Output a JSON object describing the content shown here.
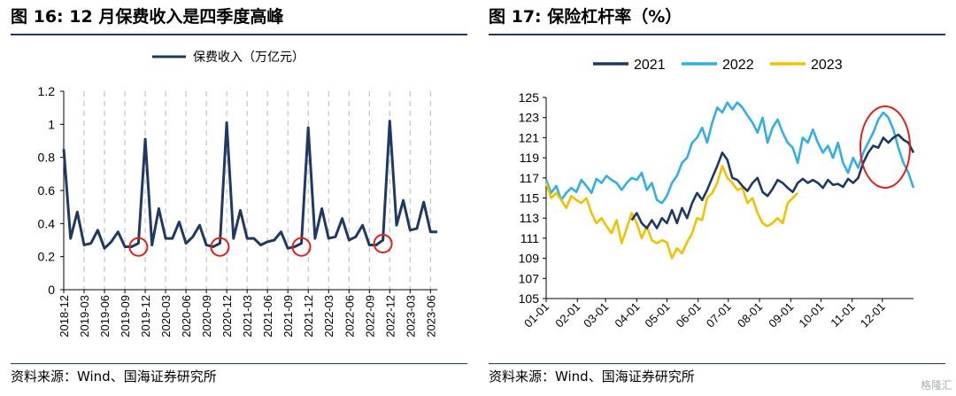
{
  "figures": [
    {
      "title": "图 16:  12 月保费收入是四季度高峰",
      "source": "资料来源：Wind、国海证券研究所"
    },
    {
      "title": "图 17:  保险杠杆率（%）",
      "source": "资料来源：Wind、国海证券研究所"
    }
  ],
  "watermark": "格隆汇",
  "chart_data": [
    {
      "type": "line",
      "title": "",
      "legend": [
        "保费收入（万亿元）"
      ],
      "legend_position": "top",
      "ylim": [
        0,
        1.2
      ],
      "yticks": [
        "0",
        "0.2",
        "0.4",
        "0.6",
        "0.8",
        "1",
        "1.2"
      ],
      "xtick_labels": [
        "2018-12",
        "2019-03",
        "2019-06",
        "2019-09",
        "2019-12",
        "2020-03",
        "2020-06",
        "2020-09",
        "2020-12",
        "2021-03",
        "2021-06",
        "2021-09",
        "2021-12",
        "2022-03",
        "2022-06",
        "2022-09",
        "2022-12",
        "2023-03",
        "2023-06"
      ],
      "x": [
        "2018-12",
        "2019-01",
        "2019-02",
        "2019-03",
        "2019-04",
        "2019-05",
        "2019-06",
        "2019-07",
        "2019-08",
        "2019-09",
        "2019-10",
        "2019-11",
        "2019-12",
        "2020-01",
        "2020-02",
        "2020-03",
        "2020-04",
        "2020-05",
        "2020-06",
        "2020-07",
        "2020-08",
        "2020-09",
        "2020-10",
        "2020-11",
        "2020-12",
        "2021-01",
        "2021-02",
        "2021-03",
        "2021-04",
        "2021-05",
        "2021-06",
        "2021-07",
        "2021-08",
        "2021-09",
        "2021-10",
        "2021-11",
        "2021-12",
        "2022-01",
        "2022-02",
        "2022-03",
        "2022-04",
        "2022-05",
        "2022-06",
        "2022-07",
        "2022-08",
        "2022-09",
        "2022-10",
        "2022-11",
        "2022-12",
        "2023-01",
        "2023-02",
        "2023-03",
        "2023-04",
        "2023-05",
        "2023-06",
        "2023-07"
      ],
      "series": [
        {
          "name": "保费收入（万亿元）",
          "color": "#1f3864",
          "values": [
            0.85,
            0.31,
            0.47,
            0.27,
            0.28,
            0.36,
            0.25,
            0.29,
            0.35,
            0.26,
            0.26,
            0.28,
            0.91,
            0.27,
            0.49,
            0.31,
            0.31,
            0.41,
            0.28,
            0.32,
            0.39,
            0.27,
            0.26,
            0.28,
            1.01,
            0.31,
            0.48,
            0.31,
            0.31,
            0.27,
            0.29,
            0.3,
            0.35,
            0.25,
            0.26,
            0.28,
            0.98,
            0.31,
            0.49,
            0.31,
            0.32,
            0.43,
            0.3,
            0.32,
            0.39,
            0.27,
            0.27,
            0.3,
            1.02,
            0.39,
            0.54,
            0.36,
            0.37,
            0.53,
            0.35,
            0.35
          ]
        }
      ],
      "grid": "vertical-dashed",
      "highlight_circles": [
        "2019-11",
        "2020-11",
        "2021-11",
        "2022-11"
      ]
    },
    {
      "type": "line",
      "title": "",
      "legend": [
        "2021",
        "2022",
        "2023"
      ],
      "legend_position": "top",
      "ylim": [
        105,
        125
      ],
      "yticks": [
        "105",
        "107",
        "109",
        "111",
        "113",
        "115",
        "117",
        "119",
        "121",
        "123",
        "125"
      ],
      "xtick_labels": [
        "01-01",
        "02-01",
        "03-01",
        "04-01",
        "05-01",
        "06-01",
        "07-01",
        "08-01",
        "09-01",
        "10-01",
        "11-01",
        "12-01"
      ],
      "grid": "none",
      "highlight_circle": "late November – mid December",
      "series": [
        {
          "name": "2021",
          "color": "#1f3864",
          "x": [
            0,
            10,
            20,
            30,
            40,
            50,
            60,
            70,
            80,
            85,
            90,
            95,
            100,
            105,
            110,
            115,
            120,
            125,
            130,
            135,
            140,
            145,
            150,
            155,
            160,
            165,
            170,
            175,
            180,
            185,
            190,
            195,
            200,
            205,
            210,
            215,
            220,
            225,
            230,
            235,
            240,
            245,
            250,
            255,
            260,
            265,
            270,
            275,
            280,
            285,
            290,
            295,
            300,
            305,
            310,
            315,
            320,
            325,
            330,
            335,
            340,
            345,
            350,
            355,
            360,
            365
          ],
          "y": [
            null,
            null,
            null,
            null,
            null,
            null,
            null,
            null,
            null,
            112.8,
            113.5,
            112.5,
            112,
            112.8,
            112,
            113,
            112.5,
            113.8,
            112.5,
            114,
            113,
            114.5,
            115.5,
            114.8,
            115.8,
            117,
            118.2,
            119.5,
            118.8,
            117,
            116.8,
            116.2,
            115.7,
            116.5,
            117,
            115.6,
            115.2,
            115.9,
            116.8,
            116.5,
            116,
            115.6,
            116.5,
            116.9,
            116.5,
            116.8,
            116.5,
            116,
            116.8,
            116.3,
            116.4,
            116.1,
            116.9,
            116.5,
            117,
            118.5,
            119.5,
            120.2,
            120,
            121,
            120.5,
            121,
            121.3,
            120.8,
            120.5,
            119.5
          ]
        },
        {
          "name": "2022",
          "color": "#33aee6",
          "x": [
            0,
            5,
            10,
            15,
            20,
            25,
            30,
            35,
            40,
            45,
            50,
            55,
            60,
            65,
            70,
            75,
            80,
            85,
            90,
            95,
            100,
            105,
            110,
            115,
            120,
            125,
            130,
            135,
            140,
            145,
            150,
            155,
            160,
            165,
            170,
            175,
            180,
            185,
            190,
            195,
            200,
            205,
            210,
            215,
            220,
            225,
            230,
            235,
            240,
            245,
            250,
            255,
            260,
            265,
            270,
            275,
            280,
            285,
            290,
            295,
            300,
            305,
            310,
            315,
            320,
            325,
            330,
            335,
            340,
            345,
            350,
            355,
            360,
            365
          ],
          "y": [
            116.8,
            115.5,
            116.2,
            114.8,
            115.5,
            116,
            115.6,
            116.8,
            116.2,
            115.5,
            116.9,
            116.5,
            117.2,
            116.8,
            116.5,
            115.8,
            116.5,
            117,
            116.8,
            117.5,
            115.8,
            116.5,
            114.8,
            114.5,
            115.2,
            116.5,
            117.2,
            118.5,
            119,
            120.5,
            121,
            122,
            120.5,
            122.5,
            124,
            123.5,
            124.5,
            123.8,
            124.5,
            124,
            123.2,
            122.5,
            121.5,
            123,
            120.5,
            122,
            122.8,
            121.5,
            120.5,
            120,
            118.5,
            121,
            120.5,
            121.8,
            120.5,
            119.5,
            120.2,
            119,
            120.5,
            118.5,
            117.5,
            119,
            118,
            119.5,
            120.5,
            121.5,
            122.8,
            123.5,
            123,
            121.8,
            120,
            118.5,
            117.5,
            116
          ]
        },
        {
          "name": "2023",
          "color": "#f2c200",
          "x": [
            0,
            5,
            10,
            15,
            20,
            25,
            30,
            35,
            40,
            45,
            50,
            55,
            60,
            65,
            70,
            75,
            80,
            85,
            90,
            95,
            100,
            105,
            110,
            115,
            120,
            125,
            130,
            135,
            140,
            145,
            150,
            155,
            160,
            165,
            170,
            175,
            180,
            185,
            190,
            195,
            200,
            205,
            210,
            215,
            220,
            225,
            230,
            235,
            240,
            245,
            250
          ],
          "y": [
            116.5,
            115,
            115.5,
            114.8,
            114,
            115.2,
            114.8,
            114.5,
            115,
            113.5,
            112.5,
            113,
            112.2,
            111.5,
            112.8,
            110.5,
            112,
            113.5,
            112.5,
            111,
            112.2,
            110.8,
            110.5,
            110.8,
            110.6,
            109,
            110,
            109.5,
            110.6,
            111.5,
            113,
            112.8,
            115,
            115.5,
            116.5,
            118.2,
            117,
            116.5,
            115.8,
            116,
            114.5,
            115,
            113.5,
            112.5,
            112.2,
            112.5,
            113,
            112.5,
            114.5,
            115,
            115.5
          ]
        }
      ]
    }
  ]
}
